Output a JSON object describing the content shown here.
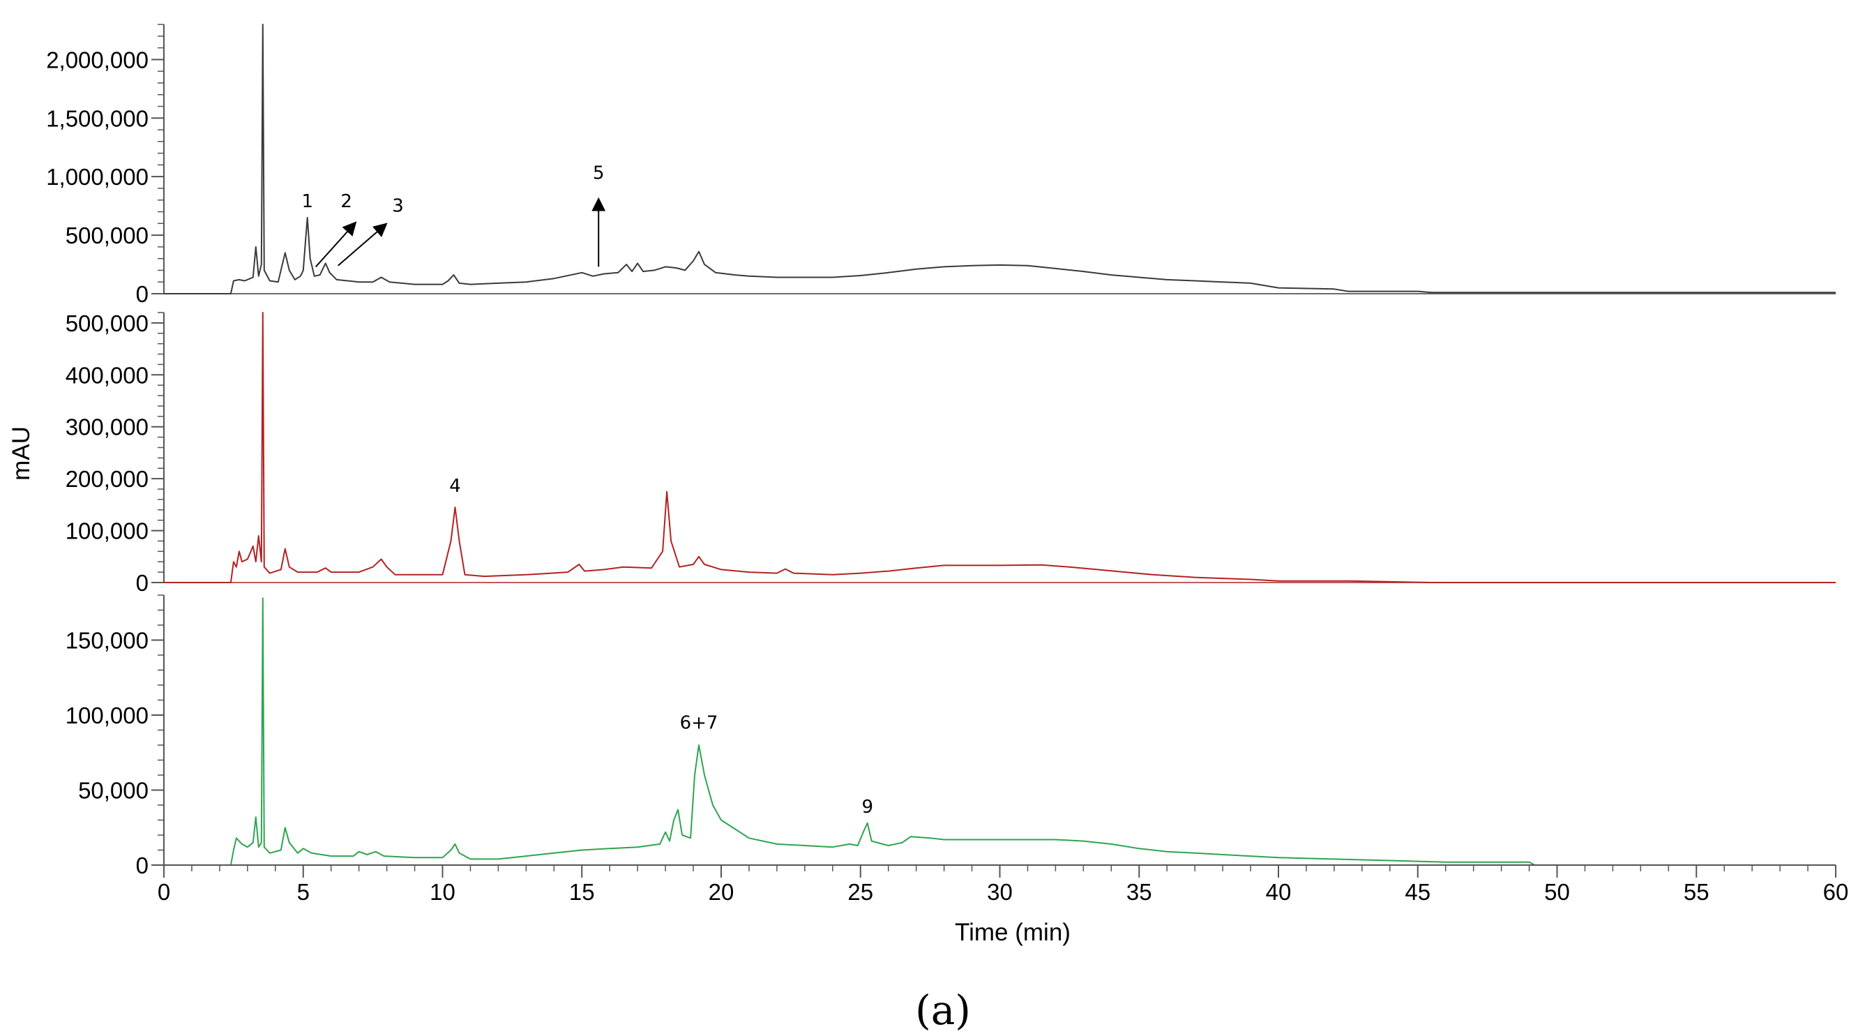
{
  "chart_data": {
    "type": "line",
    "xlabel": "Time (min)",
    "ylabel": "mAU",
    "caption": "(a)",
    "xlim": [
      0,
      60
    ],
    "x_ticks": [
      "0",
      "5",
      "10",
      "15",
      "20",
      "25",
      "30",
      "35",
      "40",
      "45",
      "50",
      "55",
      "60"
    ],
    "panels": [
      {
        "color": "#3a3a3a",
        "ylim": [
          0,
          2300000
        ],
        "y_ticks": [
          {
            "value": 0,
            "label": "0"
          },
          {
            "value": 500000,
            "label": "500,000"
          },
          {
            "value": 1000000,
            "label": "1,000,000"
          },
          {
            "value": 1500000,
            "label": "1,500,000"
          },
          {
            "value": 2000000,
            "label": "2,000,000"
          }
        ],
        "baseline": [
          [
            0,
            0
          ],
          [
            2.4,
            0
          ],
          [
            2.5,
            110000
          ],
          [
            2.7,
            120000
          ],
          [
            2.9,
            110000
          ],
          [
            3.1,
            130000
          ],
          [
            3.2,
            140000
          ],
          [
            3.3,
            400000
          ],
          [
            3.4,
            150000
          ],
          [
            3.5,
            250000
          ],
          [
            3.55,
            2300000
          ],
          [
            3.6,
            200000
          ],
          [
            3.8,
            110000
          ],
          [
            4.1,
            100000
          ],
          [
            4.2,
            200000
          ],
          [
            4.35,
            350000
          ],
          [
            4.5,
            200000
          ],
          [
            4.7,
            120000
          ],
          [
            4.9,
            150000
          ],
          [
            5.0,
            200000
          ],
          [
            5.1,
            500000
          ],
          [
            5.15,
            650000
          ],
          [
            5.25,
            300000
          ],
          [
            5.4,
            150000
          ],
          [
            5.6,
            160000
          ],
          [
            5.8,
            260000
          ],
          [
            5.95,
            180000
          ],
          [
            6.2,
            120000
          ],
          [
            7.0,
            100000
          ],
          [
            7.5,
            100000
          ],
          [
            7.8,
            140000
          ],
          [
            8.1,
            100000
          ],
          [
            9.0,
            80000
          ],
          [
            10.0,
            80000
          ],
          [
            10.2,
            110000
          ],
          [
            10.4,
            160000
          ],
          [
            10.6,
            90000
          ],
          [
            11.0,
            80000
          ],
          [
            12.0,
            90000
          ],
          [
            13.0,
            100000
          ],
          [
            14.0,
            130000
          ],
          [
            15.0,
            180000
          ],
          [
            15.4,
            150000
          ],
          [
            15.8,
            170000
          ],
          [
            16.3,
            180000
          ],
          [
            16.6,
            250000
          ],
          [
            16.8,
            190000
          ],
          [
            17.0,
            260000
          ],
          [
            17.2,
            190000
          ],
          [
            17.6,
            200000
          ],
          [
            18.0,
            230000
          ],
          [
            18.4,
            220000
          ],
          [
            18.7,
            200000
          ],
          [
            19.0,
            280000
          ],
          [
            19.2,
            360000
          ],
          [
            19.4,
            250000
          ],
          [
            19.8,
            180000
          ],
          [
            20.5,
            160000
          ],
          [
            21.0,
            150000
          ],
          [
            22.0,
            140000
          ],
          [
            24.0,
            140000
          ],
          [
            25.0,
            155000
          ],
          [
            26.0,
            180000
          ],
          [
            27.0,
            210000
          ],
          [
            28.0,
            230000
          ],
          [
            29.0,
            240000
          ],
          [
            30.0,
            245000
          ],
          [
            31.0,
            240000
          ],
          [
            32.0,
            215000
          ],
          [
            33.0,
            190000
          ],
          [
            34.0,
            160000
          ],
          [
            35.0,
            140000
          ],
          [
            36.0,
            120000
          ],
          [
            37.0,
            110000
          ],
          [
            38.0,
            100000
          ],
          [
            39.0,
            90000
          ],
          [
            40.0,
            50000
          ],
          [
            42.0,
            40000
          ],
          [
            42.5,
            20000
          ],
          [
            45.0,
            20000
          ],
          [
            45.5,
            10000
          ],
          [
            50.0,
            10000
          ],
          [
            60.0,
            10000
          ]
        ],
        "annotations": [
          {
            "label": "1",
            "x": 5.15,
            "y": 740000
          },
          {
            "label": "2",
            "x": 6.55,
            "y": 740000
          },
          {
            "label": "3",
            "x": 8.4,
            "y": 700000
          },
          {
            "label": "5",
            "x": 15.6,
            "y": 980000
          }
        ],
        "arrows": [
          {
            "from": [
              5.45,
              230000
            ],
            "to": [
              6.85,
              600000
            ]
          },
          {
            "from": [
              6.25,
              240000
            ],
            "to": [
              7.95,
              590000
            ]
          },
          {
            "from": [
              15.6,
              230000
            ],
            "to": [
              15.6,
              800000
            ]
          }
        ]
      },
      {
        "color": "#b22222",
        "ylim": [
          0,
          520000
        ],
        "y_ticks": [
          {
            "value": 0,
            "label": "0"
          },
          {
            "value": 100000,
            "label": "100,000"
          },
          {
            "value": 200000,
            "label": "200,000"
          },
          {
            "value": 300000,
            "label": "300,000"
          },
          {
            "value": 400000,
            "label": "400,000"
          },
          {
            "value": 500000,
            "label": "500,000"
          }
        ],
        "baseline": [
          [
            0,
            0
          ],
          [
            2.4,
            0
          ],
          [
            2.5,
            40000
          ],
          [
            2.6,
            30000
          ],
          [
            2.7,
            60000
          ],
          [
            2.8,
            40000
          ],
          [
            3.0,
            45000
          ],
          [
            3.2,
            70000
          ],
          [
            3.3,
            40000
          ],
          [
            3.4,
            90000
          ],
          [
            3.5,
            40000
          ],
          [
            3.55,
            520000
          ],
          [
            3.6,
            30000
          ],
          [
            3.8,
            18000
          ],
          [
            4.2,
            25000
          ],
          [
            4.35,
            65000
          ],
          [
            4.5,
            30000
          ],
          [
            4.8,
            20000
          ],
          [
            5.5,
            20000
          ],
          [
            5.8,
            28000
          ],
          [
            6.0,
            20000
          ],
          [
            7.0,
            20000
          ],
          [
            7.5,
            30000
          ],
          [
            7.8,
            45000
          ],
          [
            8.0,
            30000
          ],
          [
            8.3,
            15000
          ],
          [
            9.0,
            15000
          ],
          [
            10.0,
            15000
          ],
          [
            10.3,
            80000
          ],
          [
            10.45,
            145000
          ],
          [
            10.6,
            80000
          ],
          [
            10.8,
            15000
          ],
          [
            11.5,
            12000
          ],
          [
            13.0,
            15000
          ],
          [
            14.5,
            20000
          ],
          [
            14.9,
            35000
          ],
          [
            15.1,
            22000
          ],
          [
            15.8,
            25000
          ],
          [
            16.5,
            30000
          ],
          [
            17.5,
            28000
          ],
          [
            17.9,
            60000
          ],
          [
            18.05,
            175000
          ],
          [
            18.2,
            80000
          ],
          [
            18.5,
            30000
          ],
          [
            19.0,
            35000
          ],
          [
            19.2,
            50000
          ],
          [
            19.4,
            35000
          ],
          [
            20.0,
            25000
          ],
          [
            21.0,
            20000
          ],
          [
            22.0,
            18000
          ],
          [
            22.3,
            26000
          ],
          [
            22.6,
            18000
          ],
          [
            24.0,
            15000
          ],
          [
            25.0,
            18000
          ],
          [
            26.0,
            22000
          ],
          [
            27.0,
            28000
          ],
          [
            28.0,
            33000
          ],
          [
            30.0,
            33000
          ],
          [
            31.5,
            34000
          ],
          [
            32.5,
            30000
          ],
          [
            33.5,
            25000
          ],
          [
            34.5,
            20000
          ],
          [
            35.5,
            15000
          ],
          [
            37.0,
            10000
          ],
          [
            39.0,
            6000
          ],
          [
            40.0,
            3000
          ],
          [
            42.5,
            3000
          ],
          [
            45.5,
            0
          ],
          [
            60.0,
            0
          ]
        ],
        "annotations": [
          {
            "label": "4",
            "x": 10.45,
            "y": 175000
          }
        ],
        "arrows": []
      },
      {
        "color": "#2ea44f",
        "ylim": [
          0,
          180000
        ],
        "y_ticks": [
          {
            "value": 0,
            "label": "0"
          },
          {
            "value": 50000,
            "label": "50,000"
          },
          {
            "value": 100000,
            "label": "100,000"
          },
          {
            "value": 150000,
            "label": "150,000"
          }
        ],
        "baseline": [
          [
            0,
            0
          ],
          [
            2.4,
            0
          ],
          [
            2.5,
            10000
          ],
          [
            2.6,
            18000
          ],
          [
            2.8,
            14000
          ],
          [
            3.0,
            12000
          ],
          [
            3.2,
            15000
          ],
          [
            3.3,
            32000
          ],
          [
            3.4,
            12000
          ],
          [
            3.5,
            15000
          ],
          [
            3.55,
            178000
          ],
          [
            3.6,
            12000
          ],
          [
            3.8,
            8000
          ],
          [
            4.2,
            10000
          ],
          [
            4.35,
            25000
          ],
          [
            4.5,
            15000
          ],
          [
            4.8,
            8000
          ],
          [
            5.0,
            11000
          ],
          [
            5.3,
            8000
          ],
          [
            6.0,
            6000
          ],
          [
            6.8,
            6000
          ],
          [
            7.0,
            9000
          ],
          [
            7.3,
            7000
          ],
          [
            7.6,
            9000
          ],
          [
            7.9,
            6000
          ],
          [
            9.0,
            5000
          ],
          [
            10.0,
            5000
          ],
          [
            10.3,
            10000
          ],
          [
            10.45,
            14000
          ],
          [
            10.6,
            8000
          ],
          [
            11.0,
            4000
          ],
          [
            12.0,
            4000
          ],
          [
            13.0,
            6000
          ],
          [
            14.0,
            8000
          ],
          [
            15.0,
            10000
          ],
          [
            16.0,
            11000
          ],
          [
            17.0,
            12000
          ],
          [
            17.8,
            14000
          ],
          [
            18.0,
            22000
          ],
          [
            18.15,
            16000
          ],
          [
            18.3,
            30000
          ],
          [
            18.45,
            37000
          ],
          [
            18.6,
            20000
          ],
          [
            18.9,
            18000
          ],
          [
            19.05,
            60000
          ],
          [
            19.2,
            80000
          ],
          [
            19.4,
            60000
          ],
          [
            19.7,
            40000
          ],
          [
            20.0,
            30000
          ],
          [
            20.5,
            24000
          ],
          [
            21.0,
            18000
          ],
          [
            22.0,
            14000
          ],
          [
            23.0,
            13000
          ],
          [
            24.0,
            12000
          ],
          [
            24.6,
            14000
          ],
          [
            24.9,
            13000
          ],
          [
            25.1,
            22000
          ],
          [
            25.25,
            28000
          ],
          [
            25.4,
            16000
          ],
          [
            26.0,
            13000
          ],
          [
            26.5,
            15000
          ],
          [
            26.8,
            19000
          ],
          [
            27.5,
            18000
          ],
          [
            28.0,
            17000
          ],
          [
            31.0,
            17000
          ],
          [
            32.0,
            17000
          ],
          [
            33.0,
            16000
          ],
          [
            34.0,
            14000
          ],
          [
            35.0,
            11000
          ],
          [
            36.0,
            9000
          ],
          [
            37.0,
            8000
          ],
          [
            38.0,
            7000
          ],
          [
            40.0,
            5000
          ],
          [
            42.0,
            4000
          ],
          [
            44.0,
            3000
          ],
          [
            46.0,
            2000
          ],
          [
            49.0,
            2000
          ],
          [
            49.2,
            0
          ],
          [
            60.0,
            0
          ]
        ],
        "annotations": [
          {
            "label": "6+7",
            "x": 19.2,
            "y": 91000
          },
          {
            "label": "9",
            "x": 25.25,
            "y": 35000
          }
        ],
        "arrows": []
      }
    ]
  }
}
